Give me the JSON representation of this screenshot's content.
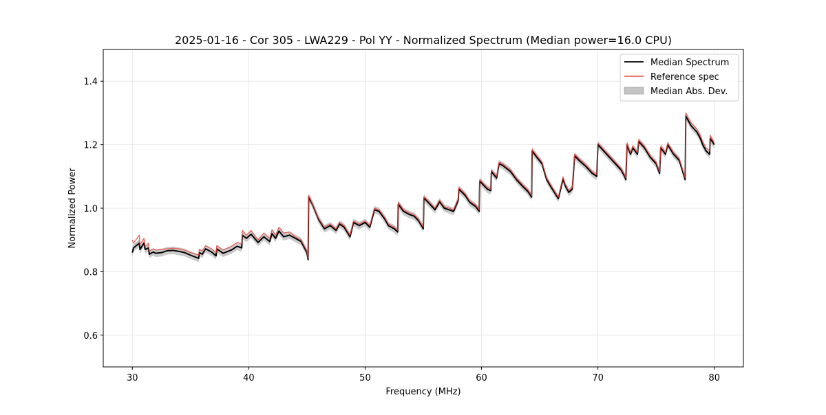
{
  "chart_data": {
    "type": "line",
    "title": "2025-01-16 - Cor 305 - LWA229 - Pol YY - Normalized Spectrum (Median power=16.0 CPU)",
    "xlabel": "Frequency (MHz)",
    "ylabel": "Normalized Power",
    "xlim": [
      27.5,
      82.5
    ],
    "ylim": [
      0.5,
      1.5
    ],
    "xticks": [
      30,
      40,
      50,
      60,
      70,
      80
    ],
    "xtick_labels": [
      "30",
      "40",
      "50",
      "60",
      "70",
      "80"
    ],
    "yticks": [
      0.6,
      0.8,
      1.0,
      1.2,
      1.4
    ],
    "ytick_labels": [
      "0.6",
      "0.8",
      "1.0",
      "1.2",
      "1.4"
    ],
    "grid": true,
    "legend": {
      "position": "top-right",
      "entries": [
        {
          "label": "Median Spectrum",
          "kind": "line",
          "color": "#000000"
        },
        {
          "label": "Reference spec",
          "kind": "line",
          "color": "#e8473f"
        },
        {
          "label": "Median Abs. Dev.",
          "kind": "patch",
          "color": "#c4c4c4"
        }
      ]
    },
    "mad_band": 0.012,
    "series": [
      {
        "name": "Median Spectrum",
        "color": "#000000",
        "x": [
          30.0,
          30.1,
          30.6,
          30.65,
          31.0,
          31.1,
          31.4,
          31.45,
          31.8,
          32.0,
          32.5,
          33.0,
          33.5,
          34.0,
          34.5,
          35.0,
          35.7,
          35.75,
          36.0,
          36.3,
          36.8,
          37.2,
          37.25,
          37.8,
          38.5,
          39.0,
          39.4,
          39.45,
          39.8,
          40.2,
          40.8,
          41.3,
          41.8,
          42.0,
          42.3,
          42.6,
          43.0,
          43.5,
          44.0,
          44.5,
          45.0,
          45.1,
          45.15,
          45.5,
          46.0,
          46.5,
          47.0,
          47.5,
          47.8,
          48.2,
          48.7,
          49.0,
          49.5,
          50.0,
          50.4,
          50.8,
          51.2,
          51.7,
          52.0,
          52.5,
          52.8,
          52.85,
          53.3,
          53.8,
          54.2,
          54.6,
          55.0,
          55.05,
          55.5,
          56.0,
          56.4,
          56.8,
          57.2,
          57.6,
          58.0,
          58.05,
          58.6,
          59.0,
          59.5,
          59.8,
          59.85,
          60.5,
          60.8,
          60.85,
          61.3,
          61.5,
          61.8,
          62.5,
          63.0,
          63.5,
          64.0,
          64.3,
          64.35,
          64.8,
          65.2,
          65.6,
          66.0,
          66.6,
          67.0,
          67.2,
          67.5,
          67.8,
          68.0,
          68.4,
          69.0,
          69.5,
          69.9,
          70.0,
          70.5,
          71.0,
          71.5,
          72.0,
          72.3,
          72.4,
          72.5,
          72.8,
          73.0,
          73.4,
          73.5,
          74.0,
          74.5,
          75.0,
          75.3,
          75.4,
          75.8,
          76.0,
          76.5,
          77.0,
          77.5,
          77.55,
          78.0,
          78.5,
          78.8,
          79.0,
          79.3,
          79.6,
          79.65,
          80.0
        ],
        "y": [
          0.86,
          0.875,
          0.89,
          0.87,
          0.89,
          0.87,
          0.875,
          0.855,
          0.862,
          0.858,
          0.86,
          0.866,
          0.867,
          0.864,
          0.86,
          0.852,
          0.842,
          0.86,
          0.855,
          0.872,
          0.862,
          0.85,
          0.872,
          0.858,
          0.868,
          0.88,
          0.875,
          0.915,
          0.905,
          0.918,
          0.892,
          0.91,
          0.895,
          0.92,
          0.905,
          0.928,
          0.91,
          0.915,
          0.905,
          0.895,
          0.86,
          0.838,
          1.035,
          1.01,
          0.965,
          0.935,
          0.945,
          0.93,
          0.95,
          0.94,
          0.91,
          0.955,
          0.945,
          0.955,
          0.94,
          0.995,
          0.99,
          0.965,
          0.945,
          0.935,
          0.925,
          1.012,
          0.99,
          0.98,
          0.975,
          0.96,
          0.935,
          1.032,
          1.015,
          0.995,
          1.02,
          1.0,
          0.995,
          0.99,
          1.025,
          1.06,
          1.04,
          1.018,
          1.005,
          0.99,
          1.085,
          1.06,
          1.055,
          1.115,
          1.095,
          1.14,
          1.135,
          1.115,
          1.09,
          1.07,
          1.052,
          1.035,
          1.18,
          1.158,
          1.14,
          1.09,
          1.065,
          1.03,
          1.092,
          1.07,
          1.05,
          1.06,
          1.165,
          1.15,
          1.13,
          1.11,
          1.1,
          1.2,
          1.18,
          1.16,
          1.14,
          1.12,
          1.1,
          1.09,
          1.2,
          1.17,
          1.19,
          1.17,
          1.21,
          1.19,
          1.16,
          1.14,
          1.11,
          1.19,
          1.17,
          1.2,
          1.17,
          1.15,
          1.09,
          1.29,
          1.26,
          1.24,
          1.22,
          1.2,
          1.18,
          1.17,
          1.22,
          1.2
        ]
      },
      {
        "name": "Reference spec",
        "color": "#e8473f",
        "x": [
          30.0,
          30.1,
          30.6,
          30.65,
          31.0,
          31.1,
          31.4,
          31.45,
          31.8,
          32.0,
          32.5,
          33.0,
          33.5,
          34.0,
          34.5,
          35.0,
          35.7,
          35.75,
          36.0,
          36.3,
          36.8,
          37.2,
          37.25,
          37.8,
          38.5,
          39.0,
          39.4,
          39.45,
          39.8,
          40.2,
          40.8,
          41.3,
          41.8,
          42.0,
          42.3,
          42.6,
          43.0,
          43.5,
          44.0,
          44.5,
          45.0,
          45.1,
          45.15,
          45.5,
          46.0,
          46.5,
          47.0,
          47.5,
          47.8,
          48.2,
          48.7,
          49.0,
          49.5,
          50.0,
          50.4,
          50.8,
          51.2,
          51.7,
          52.0,
          52.5,
          52.8,
          52.85,
          53.3,
          53.8,
          54.2,
          54.6,
          55.0,
          55.05,
          55.5,
          56.0,
          56.4,
          56.8,
          57.2,
          57.6,
          58.0,
          58.05,
          58.6,
          59.0,
          59.5,
          59.8,
          59.85,
          60.5,
          60.8,
          60.85,
          61.3,
          61.5,
          61.8,
          62.5,
          63.0,
          63.5,
          64.0,
          64.3,
          64.35,
          64.8,
          65.2,
          65.6,
          66.0,
          66.6,
          67.0,
          67.2,
          67.5,
          67.8,
          68.0,
          68.4,
          69.0,
          69.5,
          69.9,
          70.0,
          70.5,
          71.0,
          71.5,
          72.0,
          72.3,
          72.4,
          72.5,
          72.8,
          73.0,
          73.4,
          73.5,
          74.0,
          74.5,
          75.0,
          75.3,
          75.4,
          75.8,
          76.0,
          76.5,
          77.0,
          77.5,
          77.55,
          78.0,
          78.5,
          78.8,
          79.0,
          79.3,
          79.6,
          79.65,
          80.0
        ],
        "y": [
          0.9,
          0.89,
          0.915,
          0.885,
          0.905,
          0.88,
          0.89,
          0.865,
          0.872,
          0.868,
          0.87,
          0.872,
          0.874,
          0.872,
          0.868,
          0.86,
          0.852,
          0.87,
          0.866,
          0.882,
          0.872,
          0.86,
          0.882,
          0.868,
          0.88,
          0.892,
          0.888,
          0.93,
          0.915,
          0.93,
          0.9,
          0.922,
          0.905,
          0.932,
          0.915,
          0.94,
          0.922,
          0.925,
          0.91,
          0.9,
          0.865,
          0.842,
          1.04,
          1.012,
          0.968,
          0.94,
          0.95,
          0.935,
          0.955,
          0.945,
          0.915,
          0.96,
          0.95,
          0.96,
          0.945,
          1.0,
          0.995,
          0.97,
          0.95,
          0.94,
          0.93,
          1.018,
          0.995,
          0.985,
          0.98,
          0.965,
          0.94,
          1.036,
          1.02,
          1.0,
          1.025,
          1.005,
          1.0,
          0.995,
          1.03,
          1.065,
          1.045,
          1.022,
          1.01,
          0.995,
          1.09,
          1.065,
          1.06,
          1.12,
          1.1,
          1.145,
          1.14,
          1.12,
          1.095,
          1.075,
          1.057,
          1.04,
          1.185,
          1.163,
          1.145,
          1.095,
          1.07,
          1.035,
          1.098,
          1.075,
          1.055,
          1.065,
          1.17,
          1.155,
          1.135,
          1.115,
          1.105,
          1.205,
          1.185,
          1.165,
          1.145,
          1.125,
          1.105,
          1.095,
          1.205,
          1.175,
          1.195,
          1.175,
          1.215,
          1.195,
          1.165,
          1.145,
          1.115,
          1.195,
          1.175,
          1.205,
          1.175,
          1.155,
          1.095,
          1.3,
          1.27,
          1.25,
          1.23,
          1.21,
          1.19,
          1.18,
          1.23,
          1.205
        ]
      }
    ]
  }
}
